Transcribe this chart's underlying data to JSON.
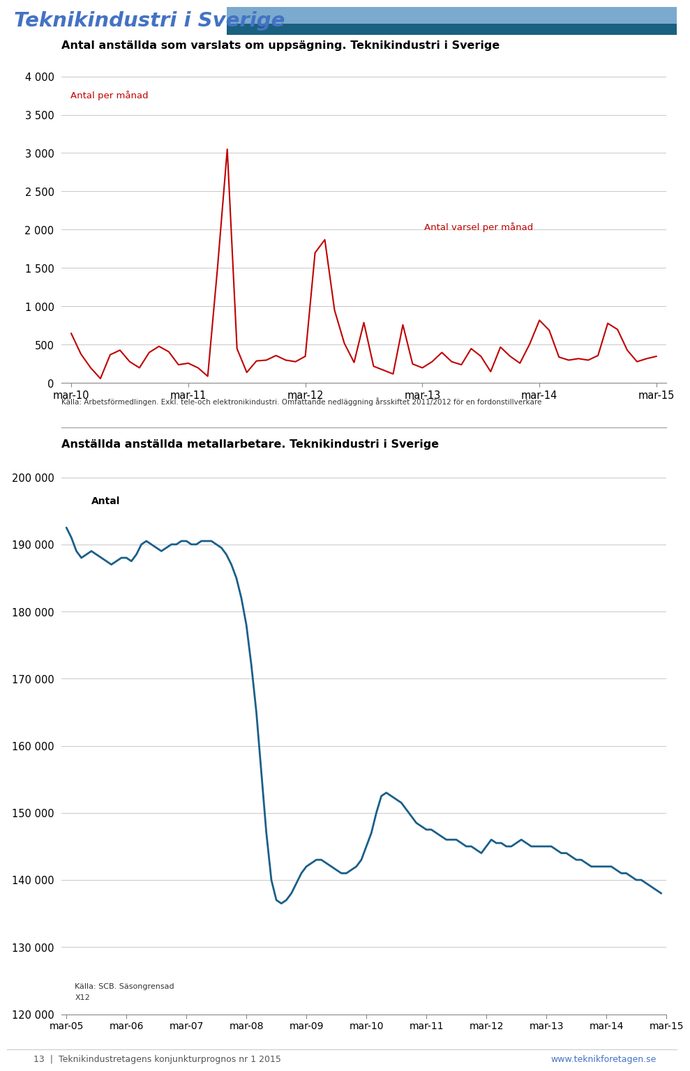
{
  "header_title": "Teknikindustri i Sverige",
  "header_color_light": "#7baacf",
  "header_color_dark": "#1a6080",
  "chart1_title": "Antal anställda som varslats om uppsägning. Teknikindustri i Sverige",
  "chart1_inner_label": "Antal per månad",
  "chart1_annotation": "Antal varsel per månad",
  "chart1_source": "Källa: Arbetsförmedlingen. Exkl. tele-och elektronikindustri. Omfattande nedläggning årsskiftet 2011/2012 för en fordonstillverkare",
  "chart1_ylim": [
    0,
    4000
  ],
  "chart1_yticks": [
    0,
    500,
    1000,
    1500,
    2000,
    2500,
    3000,
    3500,
    4000
  ],
  "chart1_ytick_labels": [
    "0",
    "500",
    "1 000",
    "1 500",
    "2 000",
    "2 500",
    "3 000",
    "3 500",
    "4 000"
  ],
  "chart1_color": "#c00000",
  "chart1_xtick_labels": [
    "mar-10",
    "mar-11",
    "mar-12",
    "mar-13",
    "mar-14",
    "mar-15"
  ],
  "chart1_data": [
    650,
    380,
    200,
    60,
    370,
    430,
    280,
    200,
    400,
    480,
    410,
    240,
    260,
    200,
    90,
    1500,
    3050,
    450,
    140,
    290,
    300,
    360,
    300,
    280,
    350,
    1700,
    1870,
    950,
    520,
    270,
    790,
    220,
    170,
    120,
    760,
    250,
    200,
    280,
    400,
    280,
    240,
    450,
    350,
    150,
    470,
    350,
    260,
    510,
    820,
    690,
    340,
    300,
    320,
    300,
    360,
    780,
    700,
    430,
    280,
    320,
    350
  ],
  "chart2_title": "Anställda anställda metallarbetare. Teknikindustri i Sverige",
  "chart2_inner_label": "Antal",
  "chart2_source_line1": "Källa: SCB. Säsongrensad",
  "chart2_source_line2": "X12",
  "chart2_ylim": [
    120000,
    200000
  ],
  "chart2_yticks": [
    120000,
    130000,
    140000,
    150000,
    160000,
    170000,
    180000,
    190000,
    200000
  ],
  "chart2_ytick_labels": [
    "120 000",
    "130 000",
    "140 000",
    "150 000",
    "160 000",
    "170 000",
    "180 000",
    "190 000",
    "200 000"
  ],
  "chart2_color": "#1a5f8a",
  "chart2_xtick_labels": [
    "mar-05",
    "mar-06",
    "mar-07",
    "mar-08",
    "mar-09",
    "mar-10",
    "mar-11",
    "mar-12",
    "mar-13",
    "mar-14",
    "mar-15"
  ],
  "chart2_data": [
    192500,
    191000,
    189000,
    188000,
    188500,
    189000,
    188500,
    188000,
    187500,
    187000,
    187500,
    188000,
    188000,
    187500,
    188500,
    190000,
    190500,
    190000,
    189500,
    189000,
    189500,
    190000,
    190000,
    190500,
    190500,
    190000,
    190000,
    190500,
    190500,
    190500,
    190000,
    189500,
    188500,
    187000,
    185000,
    182000,
    178000,
    172000,
    165000,
    156000,
    147000,
    140000,
    137000,
    136500,
    137000,
    138000,
    139500,
    141000,
    142000,
    142500,
    143000,
    143000,
    142500,
    142000,
    141500,
    141000,
    141000,
    141500,
    142000,
    143000,
    145000,
    147000,
    150000,
    152500,
    153000,
    152500,
    152000,
    151500,
    150500,
    149500,
    148500,
    148000,
    147500,
    147500,
    147000,
    146500,
    146000,
    146000,
    146000,
    145500,
    145000,
    145000,
    144500,
    144000,
    145000,
    146000,
    145500,
    145500,
    145000,
    145000,
    145500,
    146000,
    145500,
    145000,
    145000,
    145000,
    145000,
    145000,
    144500,
    144000,
    144000,
    143500,
    143000,
    143000,
    142500,
    142000,
    142000,
    142000,
    142000,
    142000,
    141500,
    141000,
    141000,
    140500,
    140000,
    140000,
    139500,
    139000,
    138500,
    138000
  ],
  "footer_page": "13  |  Teknikindustretagens konjunkturprognos nr 1 2015",
  "footer_url": "www.teknikforetagen.se"
}
